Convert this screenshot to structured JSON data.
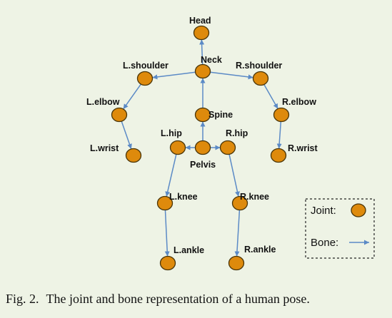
{
  "joints": [
    {
      "id": "head",
      "label": "Head"
    },
    {
      "id": "neck",
      "label": "Neck"
    },
    {
      "id": "l-shoulder",
      "label": "L.shoulder"
    },
    {
      "id": "r-shoulder",
      "label": "R.shoulder"
    },
    {
      "id": "l-elbow",
      "label": "L.elbow"
    },
    {
      "id": "r-elbow",
      "label": "R.elbow"
    },
    {
      "id": "l-wrist",
      "label": "L.wrist"
    },
    {
      "id": "r-wrist",
      "label": "R.wrist"
    },
    {
      "id": "spine",
      "label": "Spine"
    },
    {
      "id": "l-hip",
      "label": "L.hip"
    },
    {
      "id": "pelvis",
      "label": "Pelvis"
    },
    {
      "id": "r-hip",
      "label": "R.hip"
    },
    {
      "id": "l-knee",
      "label": "L.knee"
    },
    {
      "id": "r-knee",
      "label": "R.knee"
    },
    {
      "id": "l-ankle",
      "label": "L.ankle"
    },
    {
      "id": "r-ankle",
      "label": "R.ankle"
    }
  ],
  "bones": [
    [
      "neck",
      "head"
    ],
    [
      "neck",
      "l-shoulder"
    ],
    [
      "neck",
      "r-shoulder"
    ],
    [
      "l-shoulder",
      "l-elbow"
    ],
    [
      "l-elbow",
      "l-wrist"
    ],
    [
      "r-shoulder",
      "r-elbow"
    ],
    [
      "r-elbow",
      "r-wrist"
    ],
    [
      "spine",
      "neck"
    ],
    [
      "pelvis",
      "spine"
    ],
    [
      "pelvis",
      "l-hip"
    ],
    [
      "pelvis",
      "r-hip"
    ],
    [
      "l-hip",
      "l-knee"
    ],
    [
      "l-knee",
      "l-ankle"
    ],
    [
      "r-hip",
      "r-knee"
    ],
    [
      "r-knee",
      "r-ankle"
    ]
  ],
  "legend": {
    "joint_label": "Joint:",
    "bone_label": "Bone:"
  },
  "caption": {
    "figure_number": "Fig. 2.",
    "text": "The joint and bone representation of a human pose."
  },
  "colors": {
    "joint_fill": "#de8a0c",
    "joint_stroke": "#4a3508",
    "bone": "#5b8ac6",
    "background": "#eef3e5"
  }
}
